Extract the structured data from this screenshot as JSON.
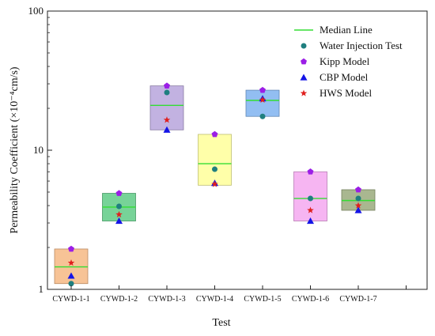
{
  "chart_data": {
    "type": "box",
    "xlabel": "Test",
    "ylabel": "Permeability Coefficient (×10⁻⁴cm/s)",
    "y_scale": "log",
    "ylim": [
      1,
      100
    ],
    "y_ticks": [
      {
        "value": 1,
        "label": "1"
      },
      {
        "value": 10,
        "label": "10"
      },
      {
        "value": 100,
        "label": "100"
      }
    ],
    "categories": [
      "CYWD-1-1",
      "CYWD-1-2",
      "CYWD-1-3",
      "CYWD-1-4",
      "CYWD-1-5",
      "CYWD-1-6",
      "CYWD-1-7"
    ],
    "boxes": [
      {
        "category": "CYWD-1-1",
        "low": 1.1,
        "high": 1.95,
        "median": 1.45,
        "color": "#f6b884"
      },
      {
        "category": "CYWD-1-2",
        "low": 3.1,
        "high": 4.9,
        "median": 3.9,
        "color": "#5fcb86"
      },
      {
        "category": "CYWD-1-3",
        "low": 14.0,
        "high": 29.0,
        "median": 21.0,
        "color": "#b7a4dc"
      },
      {
        "category": "CYWD-1-4",
        "low": 5.6,
        "high": 13.0,
        "median": 8.0,
        "color": "#ffff9a"
      },
      {
        "category": "CYWD-1-5",
        "low": 17.5,
        "high": 27.0,
        "median": 22.8,
        "color": "#7fb3f0"
      },
      {
        "category": "CYWD-1-6",
        "low": 3.1,
        "high": 7.0,
        "median": 4.5,
        "color": "#f5a8f0"
      },
      {
        "category": "CYWD-1-7",
        "low": 3.7,
        "high": 5.2,
        "median": 4.35,
        "color": "#9aaa7c"
      }
    ],
    "series": [
      {
        "name": "Water Injection Test",
        "marker": "circle",
        "color": "#1f7f7f",
        "values": [
          1.1,
          3.95,
          26.0,
          7.3,
          17.5,
          4.5,
          4.5
        ]
      },
      {
        "name": "Kipp Model",
        "marker": "pentagon",
        "color": "#9b1ee6",
        "values": [
          1.95,
          4.9,
          29.0,
          13.0,
          27.0,
          7.0,
          5.2
        ]
      },
      {
        "name": "CBP Model",
        "marker": "triangle",
        "color": "#1414e6",
        "values": [
          1.25,
          3.1,
          14.0,
          5.8,
          23.5,
          3.1,
          3.7
        ]
      },
      {
        "name": "HWS Model",
        "marker": "star",
        "color": "#e0201e",
        "values": [
          1.55,
          3.45,
          16.5,
          5.7,
          23.0,
          3.7,
          4.0
        ]
      }
    ],
    "legend": {
      "placement": "top-right",
      "median_label": "Median Line",
      "median_color": "#33dd33"
    },
    "grid": false
  }
}
